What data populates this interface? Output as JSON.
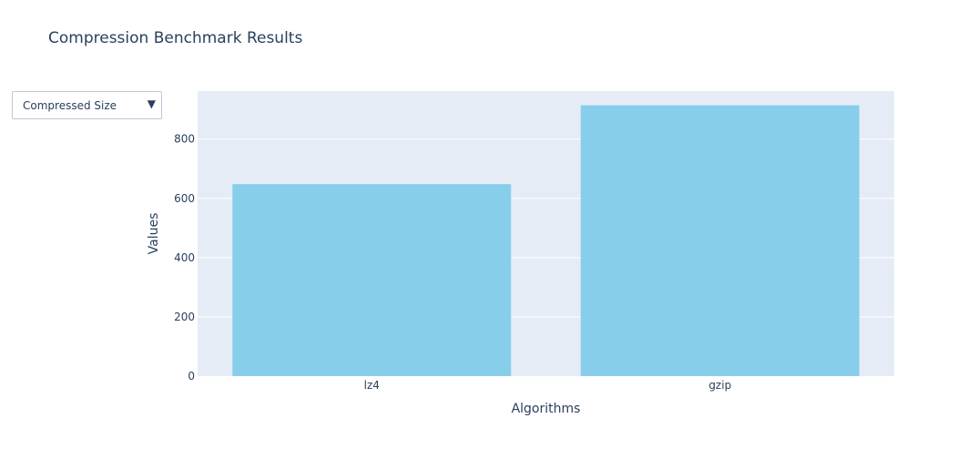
{
  "title": "Compression Benchmark Results",
  "dropdown": {
    "selected": "Compressed Size"
  },
  "colors": {
    "bar": "#87ceeb",
    "plot_bg": "#e5ecf6",
    "grid": "#ffffff",
    "text": "#2a3f5f"
  },
  "chart_data": {
    "type": "bar",
    "categories": [
      "lz4",
      "gzip"
    ],
    "values": [
      648,
      914
    ],
    "title": "Compression Benchmark Results",
    "xlabel": "Algorithms",
    "ylabel": "Values",
    "ylim": [
      0,
      962
    ],
    "yticks": [
      0,
      200,
      400,
      600,
      800
    ],
    "grid": true
  }
}
